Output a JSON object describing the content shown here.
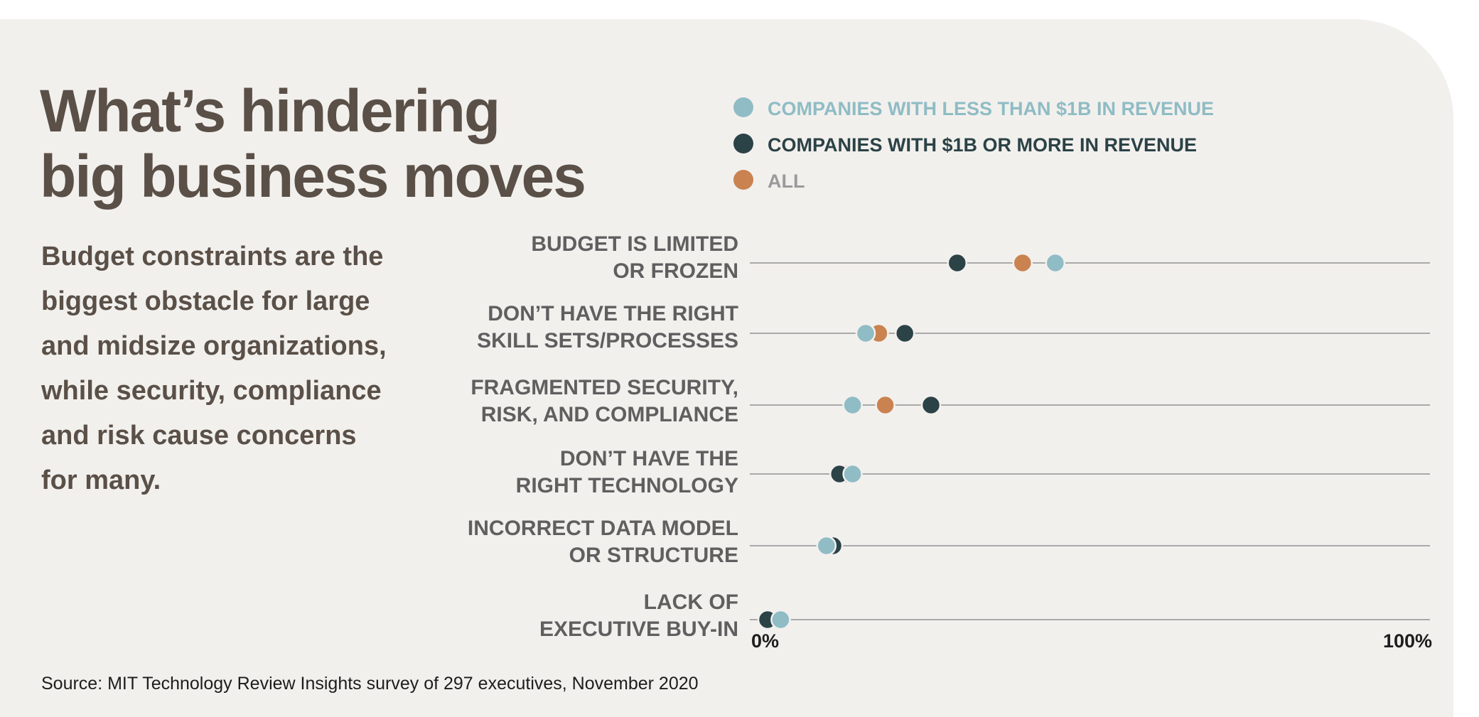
{
  "header": {
    "title_line1": "What’s hindering",
    "title_line2": "big business moves",
    "subtitle_lines": [
      "Budget constraints are the",
      "biggest obstacle for large",
      "and midsize organizations,",
      "while security, compliance",
      "and risk cause concerns",
      "for many."
    ]
  },
  "footer": {
    "source": "Source: MIT Technology Review Insights survey of 297 executives, November 2020"
  },
  "chart_data": {
    "type": "scatter",
    "orientation": "horizontal-dot-plot",
    "legend_position": "top",
    "grid": false,
    "xlim": [
      0,
      100
    ],
    "x_ticks": [
      "0%",
      "100%"
    ],
    "categories": [
      [
        "BUDGET IS LIMITED",
        "OR FROZEN"
      ],
      [
        "DON’T HAVE THE RIGHT",
        "SKILL SETS/PROCESSES"
      ],
      [
        "FRAGMENTED SECURITY,",
        "RISK, AND COMPLIANCE"
      ],
      [
        "DON’T HAVE THE",
        "RIGHT TECHNOLOGY"
      ],
      [
        "INCORRECT DATA MODEL",
        "OR STRUCTURE"
      ],
      [
        "LACK OF",
        "EXECUTIVE BUY-IN"
      ]
    ],
    "series": [
      {
        "name": "COMPANIES WITH LESS THAN $1B IN REVENUE",
        "color": "#8fbcc5",
        "label_color": "#8fbcc5",
        "values": [
          44,
          15,
          13,
          13,
          9,
          2
        ]
      },
      {
        "name": "COMPANIES WITH $1B OR MORE IN REVENUE",
        "color": "#2b4246",
        "label_color": "#2b4246",
        "values": [
          29,
          21,
          25,
          11,
          10,
          0
        ]
      },
      {
        "name": "ALL",
        "color": "#c98250",
        "label_color": "#9a9a9a",
        "values": [
          39,
          17,
          18,
          12,
          10,
          2
        ]
      }
    ]
  }
}
